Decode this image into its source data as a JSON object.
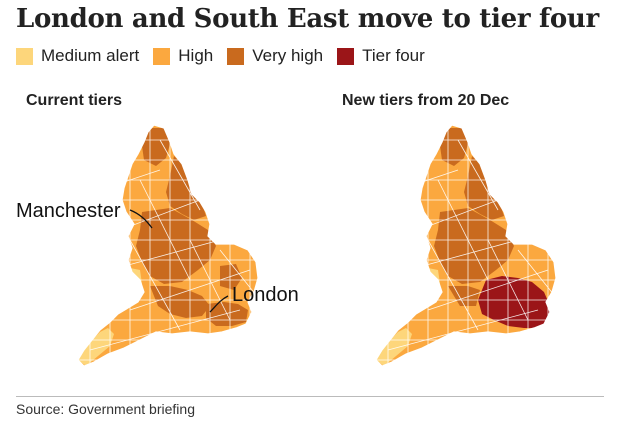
{
  "title": "London and South East move to tier four",
  "legend": [
    {
      "label": "Medium alert",
      "color": "#fdd67b"
    },
    {
      "label": "High",
      "color": "#fba83f"
    },
    {
      "label": "Very high",
      "color": "#c96a1e"
    },
    {
      "label": "Tier four",
      "color": "#9b1518"
    }
  ],
  "maps": {
    "left": {
      "heading": "Current tiers"
    },
    "right": {
      "heading": "New tiers from 20 Dec"
    }
  },
  "callouts": {
    "manchester": "Manchester",
    "london": "London"
  },
  "source": "Source: Government briefing",
  "colors": {
    "medium": "#fdd67b",
    "high": "#fba83f",
    "very_high": "#c96a1e",
    "tier_four": "#9b1518",
    "border": "#ffffff"
  }
}
